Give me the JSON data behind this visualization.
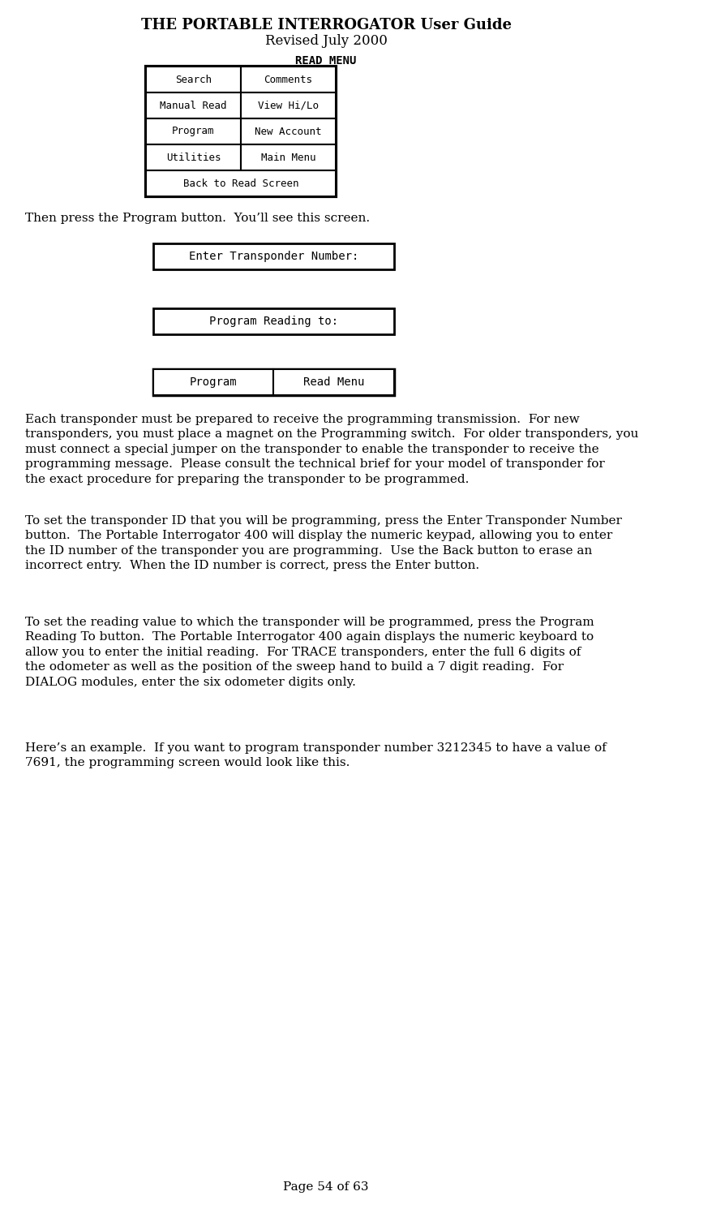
{
  "title_line1": "THE PORTABLE INTERROGATOR User Guide",
  "title_line2": "Revised July 2000",
  "page_footer": "Page 54 of 63",
  "bg_color": "#ffffff",
  "read_menu_label": "READ MENU",
  "read_menu_buttons": [
    [
      "Search",
      "Comments"
    ],
    [
      "Manual Read",
      "View Hi/Lo"
    ],
    [
      "Program",
      "New Account"
    ],
    [
      "Utilities",
      "Main Menu"
    ],
    [
      "Back to Read Screen"
    ]
  ],
  "text1": "Then press the Program button.  You’ll see this screen.",
  "prog_screen_buttons": [
    "Enter Transponder Number:",
    "Program Reading to:"
  ],
  "prog_bottom_buttons": [
    "Program",
    "Read Menu"
  ],
  "paragraph1": "Each transponder must be prepared to receive the programming transmission.  For new transponders, you must place a magnet on the Programming switch.  For older transponders, you must connect a special jumper on the transponder to enable the transponder to receive the programming message.  Please consult the technical brief for your model of transponder for the exact procedure for preparing the transponder to be programmed.",
  "paragraph2": "To set the transponder ID that you will be programming, press the Enter Transponder Number button.  The Portable Interrogator 400 will display the numeric keypad, allowing you to enter the ID number of the transponder you are programming.  Use the Back button to erase an incorrect entry.  When the ID number is correct, press the Enter button.",
  "paragraph3": "To set the reading value to which the transponder will be programmed, press the Program Reading To button.  The Portable Interrogator 400 again displays the numeric keyboard to allow you to enter the initial reading.  For TRACE transponders, enter the full 6 digits of the odometer as well as the position of the sweep hand to build a 7 digit reading.  For DIALOG modules, enter the six odometer digits only.",
  "paragraph4": "Here’s an example.  If you want to program transponder number 3212345 to have a value of 7691, the programming screen would look like this."
}
